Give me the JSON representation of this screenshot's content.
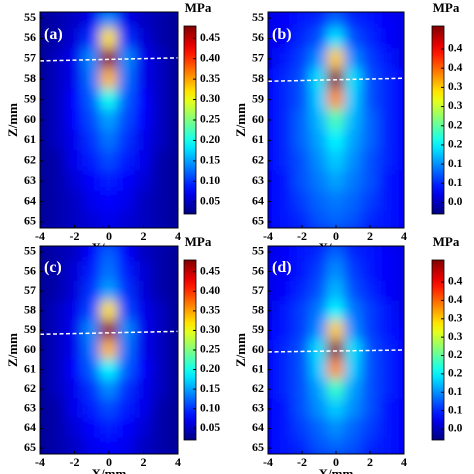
{
  "chart_data": [
    {
      "type": "heatmap",
      "label": "(a)",
      "x": [
        -4,
        -3,
        -2,
        -1,
        0,
        1,
        2,
        3,
        4
      ],
      "y": [
        55,
        56,
        57,
        58,
        59,
        60,
        61,
        62,
        63,
        64,
        65
      ],
      "values": [
        [
          0.03,
          0.04,
          0.05,
          0.07,
          0.14,
          0.07,
          0.05,
          0.04,
          0.03
        ],
        [
          0.03,
          0.04,
          0.06,
          0.1,
          0.32,
          0.1,
          0.06,
          0.04,
          0.03
        ],
        [
          0.03,
          0.05,
          0.07,
          0.14,
          0.47,
          0.14,
          0.07,
          0.05,
          0.03
        ],
        [
          0.03,
          0.05,
          0.07,
          0.13,
          0.34,
          0.13,
          0.07,
          0.05,
          0.03
        ],
        [
          0.03,
          0.05,
          0.08,
          0.12,
          0.2,
          0.12,
          0.08,
          0.05,
          0.03
        ],
        [
          0.03,
          0.05,
          0.08,
          0.11,
          0.15,
          0.11,
          0.08,
          0.05,
          0.03
        ],
        [
          0.03,
          0.05,
          0.07,
          0.1,
          0.13,
          0.1,
          0.07,
          0.05,
          0.03
        ],
        [
          0.03,
          0.04,
          0.07,
          0.09,
          0.11,
          0.09,
          0.07,
          0.04,
          0.03
        ],
        [
          0.03,
          0.04,
          0.06,
          0.08,
          0.09,
          0.08,
          0.06,
          0.04,
          0.03
        ],
        [
          0.03,
          0.04,
          0.05,
          0.07,
          0.08,
          0.07,
          0.05,
          0.04,
          0.03
        ],
        [
          0.03,
          0.04,
          0.05,
          0.06,
          0.07,
          0.06,
          0.05,
          0.04,
          0.03
        ]
      ],
      "xlim": [
        -4,
        4
      ],
      "ylim": [
        54.7,
        65.3
      ],
      "y_inverted": true,
      "xticks": [
        -4,
        -2,
        0,
        2,
        4
      ],
      "yticks": [
        55,
        56,
        57,
        58,
        59,
        60,
        61,
        62,
        63,
        64,
        65
      ],
      "xlabel": "X/mm",
      "ylabel": "Z/mm",
      "colormap": "jet",
      "colorbar": {
        "label": "MPa",
        "clim": [
          0.02,
          0.48
        ],
        "ticks": [
          0.05,
          {
            "value": 0.1,
            "label": "0.10"
          },
          0.15,
          {
            "value": 0.2,
            "label": "0.20"
          },
          0.25,
          {
            "value": 0.3,
            "label": "0.30"
          },
          0.35,
          {
            "value": 0.4,
            "label": "0.40"
          },
          0.45
        ]
      },
      "reference_line": {
        "x": [
          -4,
          4
        ],
        "y": [
          57.1,
          56.95
        ],
        "color": "#ffffff"
      }
    },
    {
      "type": "heatmap",
      "label": "(b)",
      "x": [
        -4,
        -3,
        -2,
        -1,
        0,
        1,
        2,
        3,
        4
      ],
      "y": [
        55,
        56,
        57,
        58,
        59,
        60,
        61,
        62,
        63,
        64,
        65
      ],
      "values": [
        [
          0.02,
          0.03,
          0.04,
          0.05,
          0.08,
          0.05,
          0.04,
          0.03,
          0.02
        ],
        [
          0.02,
          0.03,
          0.05,
          0.07,
          0.14,
          0.07,
          0.05,
          0.03,
          0.02
        ],
        [
          0.02,
          0.04,
          0.06,
          0.1,
          0.3,
          0.1,
          0.06,
          0.04,
          0.02
        ],
        [
          0.03,
          0.05,
          0.07,
          0.14,
          0.45,
          0.14,
          0.07,
          0.05,
          0.03
        ],
        [
          0.03,
          0.05,
          0.07,
          0.13,
          0.33,
          0.13,
          0.07,
          0.05,
          0.03
        ],
        [
          0.03,
          0.05,
          0.08,
          0.12,
          0.19,
          0.12,
          0.08,
          0.05,
          0.03
        ],
        [
          0.03,
          0.05,
          0.08,
          0.11,
          0.15,
          0.11,
          0.08,
          0.05,
          0.03
        ],
        [
          0.03,
          0.05,
          0.07,
          0.1,
          0.13,
          0.1,
          0.07,
          0.05,
          0.03
        ],
        [
          0.03,
          0.04,
          0.07,
          0.09,
          0.11,
          0.09,
          0.07,
          0.04,
          0.03
        ],
        [
          0.03,
          0.04,
          0.06,
          0.08,
          0.09,
          0.08,
          0.06,
          0.04,
          0.03
        ],
        [
          0.03,
          0.04,
          0.05,
          0.07,
          0.08,
          0.07,
          0.05,
          0.04,
          0.03
        ]
      ],
      "xlim": [
        -4,
        4
      ],
      "ylim": [
        54.7,
        65.3
      ],
      "y_inverted": true,
      "xticks": [
        -4,
        -2,
        0,
        2,
        4
      ],
      "yticks": [
        55,
        56,
        57,
        58,
        59,
        60,
        61,
        62,
        63,
        64,
        65
      ],
      "xlabel": "X/mm",
      "ylabel": "Z/mm",
      "colormap": "jet",
      "colorbar": {
        "label": "MPa",
        "clim": [
          -0.03,
          0.46
        ],
        "ticks": [
          {
            "value": 0,
            "label": "0.0"
          },
          {
            "value": 0.05,
            "label": "0.1"
          },
          0.1,
          {
            "value": 0.15,
            "label": "0.2"
          },
          0.2,
          {
            "value": 0.25,
            "label": "0.3"
          },
          0.3,
          {
            "value": 0.35,
            "label": "0.4"
          },
          0.4
        ]
      },
      "reference_line": {
        "x": [
          -4,
          4
        ],
        "y": [
          58.1,
          57.95
        ],
        "color": "#ffffff"
      }
    },
    {
      "type": "heatmap",
      "label": "(c)",
      "x": [
        -4,
        -3,
        -2,
        -1,
        0,
        1,
        2,
        3,
        4
      ],
      "y": [
        55,
        56,
        57,
        58,
        59,
        60,
        61,
        62,
        63,
        64,
        65
      ],
      "values": [
        [
          0.03,
          0.04,
          0.05,
          0.08,
          0.12,
          0.08,
          0.05,
          0.04,
          0.03
        ],
        [
          0.03,
          0.04,
          0.06,
          0.09,
          0.13,
          0.09,
          0.06,
          0.04,
          0.03
        ],
        [
          0.03,
          0.04,
          0.06,
          0.1,
          0.15,
          0.1,
          0.06,
          0.04,
          0.03
        ],
        [
          0.03,
          0.05,
          0.07,
          0.11,
          0.32,
          0.11,
          0.07,
          0.05,
          0.03
        ],
        [
          0.03,
          0.05,
          0.07,
          0.14,
          0.47,
          0.14,
          0.07,
          0.05,
          0.03
        ],
        [
          0.03,
          0.05,
          0.07,
          0.13,
          0.34,
          0.13,
          0.07,
          0.05,
          0.03
        ],
        [
          0.03,
          0.05,
          0.08,
          0.12,
          0.19,
          0.12,
          0.08,
          0.05,
          0.03
        ],
        [
          0.03,
          0.05,
          0.07,
          0.1,
          0.14,
          0.1,
          0.07,
          0.05,
          0.03
        ],
        [
          0.03,
          0.04,
          0.07,
          0.09,
          0.11,
          0.09,
          0.07,
          0.04,
          0.03
        ],
        [
          0.03,
          0.04,
          0.06,
          0.08,
          0.09,
          0.08,
          0.06,
          0.04,
          0.03
        ],
        [
          0.03,
          0.04,
          0.05,
          0.07,
          0.08,
          0.07,
          0.05,
          0.04,
          0.03
        ]
      ],
      "xlim": [
        -4,
        4
      ],
      "ylim": [
        54.7,
        65.3
      ],
      "y_inverted": true,
      "xticks": [
        -4,
        -2,
        0,
        2,
        4
      ],
      "yticks": [
        55,
        56,
        57,
        58,
        59,
        60,
        61,
        62,
        63,
        64,
        65
      ],
      "xlabel": "X/mm",
      "ylabel": "Z/mm",
      "colormap": "jet",
      "colorbar": {
        "label": "MPa",
        "clim": [
          0.02,
          0.48
        ],
        "ticks": [
          0.05,
          {
            "value": 0.1,
            "label": "0.10"
          },
          0.15,
          {
            "value": 0.2,
            "label": "0.20"
          },
          0.25,
          {
            "value": 0.3,
            "label": "0.30"
          },
          0.35,
          {
            "value": 0.4,
            "label": "0.40"
          },
          0.45
        ]
      },
      "reference_line": {
        "x": [
          -4,
          4
        ],
        "y": [
          59.2,
          59.05
        ],
        "color": "#ffffff"
      }
    },
    {
      "type": "heatmap",
      "label": "(d)",
      "x": [
        -4,
        -3,
        -2,
        -1,
        0,
        1,
        2,
        3,
        4
      ],
      "y": [
        55,
        56,
        57,
        58,
        59,
        60,
        61,
        62,
        63,
        64,
        65
      ],
      "values": [
        [
          0.02,
          0.03,
          0.04,
          0.05,
          0.08,
          0.05,
          0.04,
          0.03,
          0.02
        ],
        [
          0.02,
          0.03,
          0.04,
          0.06,
          0.1,
          0.06,
          0.04,
          0.03,
          0.02
        ],
        [
          0.02,
          0.03,
          0.05,
          0.07,
          0.12,
          0.07,
          0.05,
          0.03,
          0.02
        ],
        [
          0.02,
          0.04,
          0.06,
          0.09,
          0.15,
          0.09,
          0.06,
          0.04,
          0.02
        ],
        [
          0.03,
          0.04,
          0.06,
          0.1,
          0.3,
          0.1,
          0.06,
          0.04,
          0.03
        ],
        [
          0.03,
          0.05,
          0.07,
          0.14,
          0.45,
          0.14,
          0.07,
          0.05,
          0.03
        ],
        [
          0.03,
          0.05,
          0.07,
          0.13,
          0.33,
          0.13,
          0.07,
          0.05,
          0.03
        ],
        [
          0.03,
          0.05,
          0.07,
          0.11,
          0.18,
          0.11,
          0.07,
          0.05,
          0.03
        ],
        [
          0.03,
          0.04,
          0.07,
          0.1,
          0.13,
          0.1,
          0.07,
          0.04,
          0.03
        ],
        [
          0.03,
          0.04,
          0.06,
          0.08,
          0.1,
          0.08,
          0.06,
          0.04,
          0.03
        ],
        [
          0.03,
          0.04,
          0.05,
          0.07,
          0.08,
          0.07,
          0.05,
          0.04,
          0.03
        ]
      ],
      "xlim": [
        -4,
        4
      ],
      "ylim": [
        54.7,
        65.3
      ],
      "y_inverted": true,
      "xticks": [
        -4,
        -2,
        0,
        2,
        4
      ],
      "yticks": [
        55,
        56,
        57,
        58,
        59,
        60,
        61,
        62,
        63,
        64,
        65
      ],
      "xlabel": "X/mm",
      "ylabel": "Z/mm",
      "colormap": "jet",
      "colorbar": {
        "label": "MPa",
        "clim": [
          -0.03,
          0.46
        ],
        "ticks": [
          {
            "value": 0,
            "label": "0.0"
          },
          {
            "value": 0.05,
            "label": "0.1"
          },
          0.1,
          {
            "value": 0.15,
            "label": "0.2"
          },
          0.2,
          {
            "value": 0.25,
            "label": "0.3"
          },
          0.3,
          {
            "value": 0.35,
            "label": "0.4"
          },
          0.4
        ]
      },
      "reference_line": {
        "x": [
          -4,
          4
        ],
        "y": [
          60.1,
          60.0
        ],
        "color": "#ffffff"
      }
    }
  ]
}
